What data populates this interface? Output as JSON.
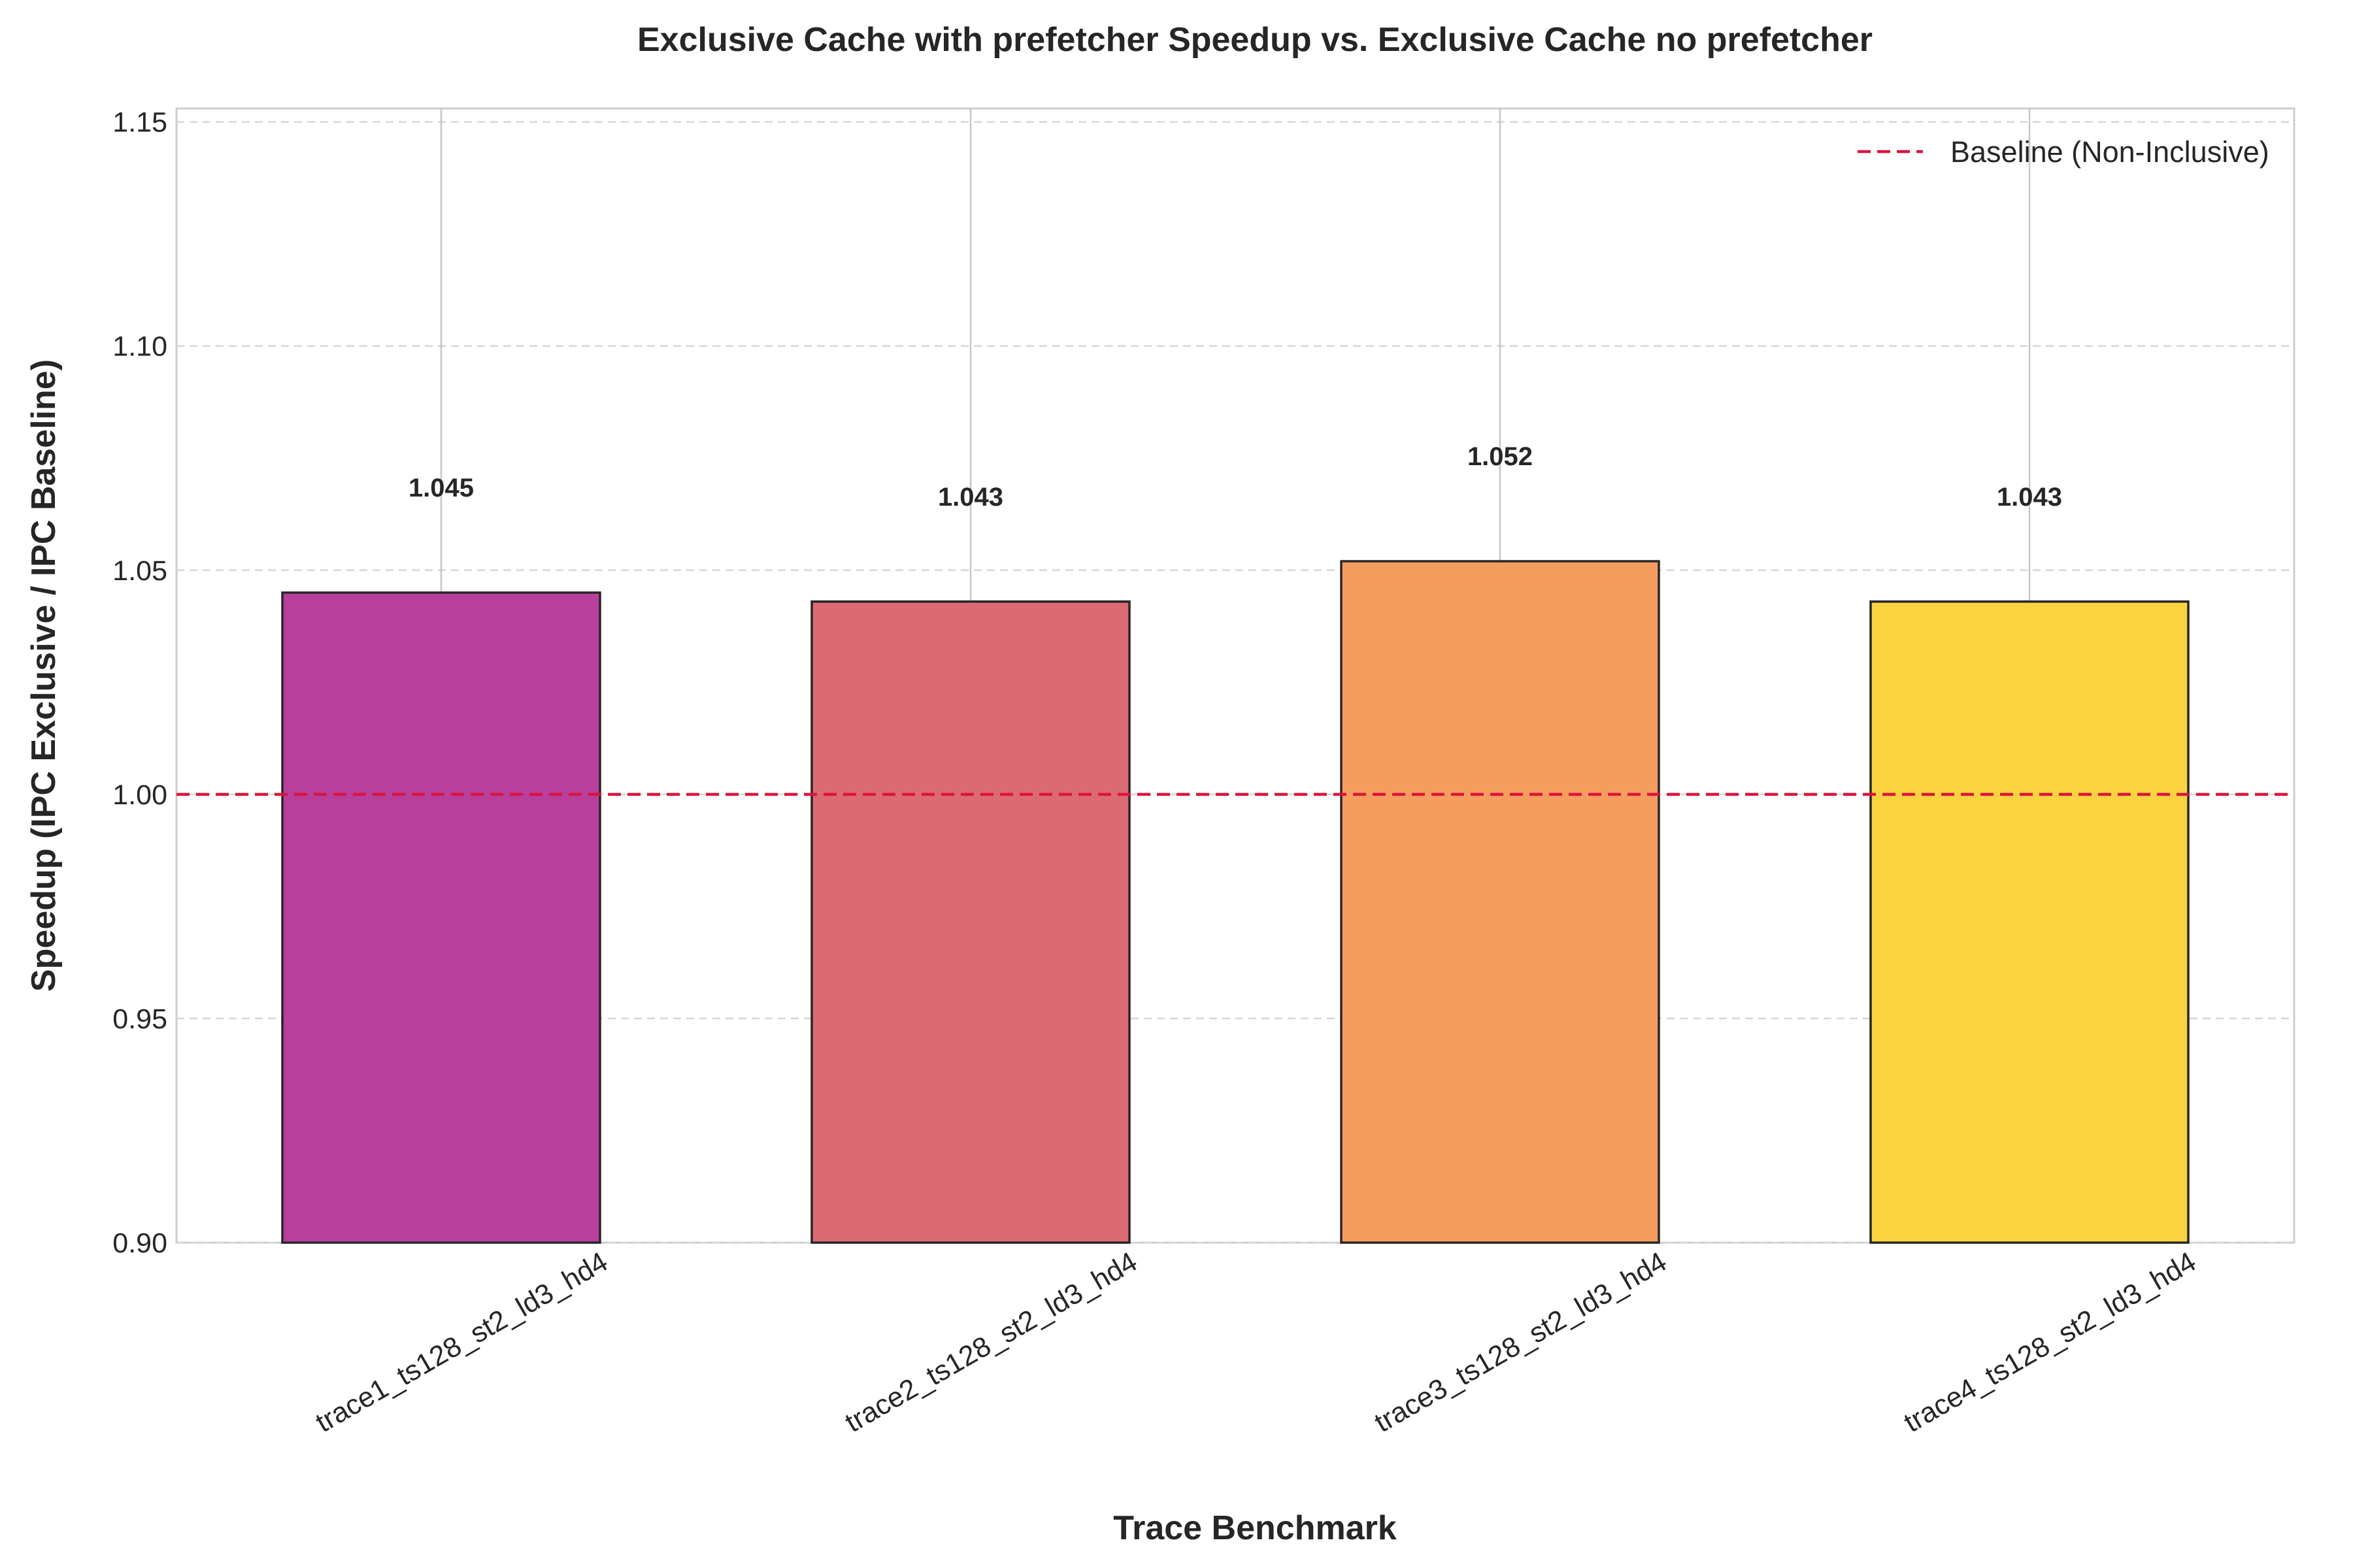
{
  "chart_data": {
    "type": "bar",
    "title": "Exclusive Cache with prefetcher Speedup vs. Exclusive Cache no prefetcher",
    "xlabel": "Trace Benchmark",
    "ylabel": "Speedup (IPC Exclusive / IPC Baseline)",
    "categories": [
      "trace1_ts128_st2_ld3_hd4",
      "trace2_ts128_st2_ld3_hd4",
      "trace3_ts128_st2_ld3_hd4",
      "trace4_ts128_st2_ld3_hd4"
    ],
    "values": [
      1.045,
      1.043,
      1.052,
      1.043
    ],
    "value_labels": [
      "1.045",
      "1.043",
      "1.052",
      "1.043"
    ],
    "bar_colors": [
      "#b83f9c",
      "#dc6a73",
      "#f59d5f",
      "#fad341"
    ],
    "ylim": [
      0.9,
      1.153
    ],
    "yticks": [
      0.9,
      0.95,
      1.0,
      1.05,
      1.1,
      1.15
    ],
    "ytick_labels": [
      "0.90",
      "0.95",
      "1.00",
      "1.05",
      "1.10",
      "1.15"
    ],
    "grid": true,
    "baseline": {
      "value": 1.0,
      "label": "Baseline (Non-Inclusive)",
      "color": "#dc143c",
      "style": "dashed"
    },
    "legend": {
      "position": "top-right",
      "entries": [
        "Baseline (Non-Inclusive)"
      ]
    }
  }
}
